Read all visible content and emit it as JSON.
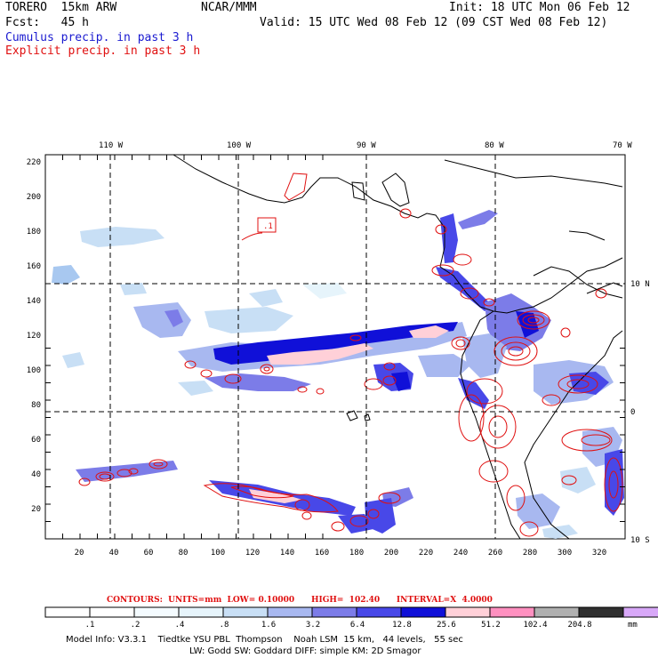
{
  "header": {
    "model": "TORERO  15km ARW",
    "org": "NCAR/MMM",
    "init": "Init: 18 UTC Mon 06 Feb 12",
    "fcst": "Fcst:   45 h",
    "valid": "Valid: 15 UTC Wed 08 Feb 12 (09 CST Wed 08 Feb 12)",
    "cumulus": "Cumulus precip. in past 3 h",
    "explicit": "Explicit precip. in past 3 h"
  },
  "colors": {
    "cumulus": "#1a1ad0",
    "explicit": "#e01010",
    "grid": "#000000"
  },
  "map": {
    "lon_labels": [
      "110 W",
      "100 W",
      "90 W",
      "80 W",
      "70 W"
    ],
    "lat_labels": [
      "10 N",
      "0",
      "10 S"
    ],
    "y_ticks": [
      "220",
      "200",
      "180",
      "160",
      "140",
      "120",
      "100",
      "80",
      "60",
      "40",
      "20"
    ],
    "x_ticks": [
      "20",
      "40",
      "60",
      "80",
      "100",
      "120",
      "140",
      "160",
      "180",
      "200",
      "220",
      "240",
      "260",
      "280",
      "300",
      "320"
    ],
    "annotation": ".1"
  },
  "contours": {
    "label": "CONTOURS:  UNITS=mm  LOW= 0.10000      HIGH=  102.40      INTERVAL=X  4.0000"
  },
  "legend": {
    "levels": [
      ".1",
      ".2",
      ".4",
      ".8",
      "1.6",
      "3.2",
      "6.4",
      "12.8",
      "25.6",
      "51.2",
      "102.4",
      "204.8"
    ],
    "unit": "mm",
    "colors": [
      "#ffffff",
      "#ffffff",
      "#f4fbff",
      "#e6f4fb",
      "#c8dff5",
      "#a8b8f0",
      "#7c7ce8",
      "#4848e8",
      "#1010d8",
      "#ffd0d8",
      "#ff90c0",
      "#b0b0b0",
      "#303030",
      "#d8a8f8"
    ]
  },
  "footer": {
    "line1": "Model Info: V3.3.1    Tiedtke YSU PBL  Thompson    Noah LSM  15 km,   44 levels,   55 sec",
    "line2": "LW: Godd SW: Goddard DIFF: simple KM: 2D Smagor"
  }
}
